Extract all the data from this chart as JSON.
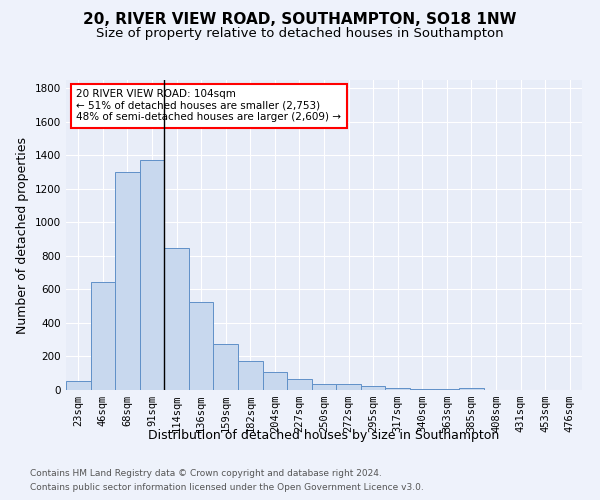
{
  "title": "20, RIVER VIEW ROAD, SOUTHAMPTON, SO18 1NW",
  "subtitle": "Size of property relative to detached houses in Southampton",
  "xlabel": "Distribution of detached houses by size in Southampton",
  "ylabel": "Number of detached properties",
  "footnote1": "Contains HM Land Registry data © Crown copyright and database right 2024.",
  "footnote2": "Contains public sector information licensed under the Open Government Licence v3.0.",
  "annotation_line1": "20 RIVER VIEW ROAD: 104sqm",
  "annotation_line2": "← 51% of detached houses are smaller (2,753)",
  "annotation_line3": "48% of semi-detached houses are larger (2,609) →",
  "bar_color": "#c8d8ee",
  "bar_edge_color": "#6090c8",
  "annotation_bar_index": 4,
  "vline_color": "#000000",
  "categories": [
    "23sqm",
    "46sqm",
    "68sqm",
    "91sqm",
    "114sqm",
    "136sqm",
    "159sqm",
    "182sqm",
    "204sqm",
    "227sqm",
    "250sqm",
    "272sqm",
    "295sqm",
    "317sqm",
    "340sqm",
    "363sqm",
    "385sqm",
    "408sqm",
    "431sqm",
    "453sqm",
    "476sqm"
  ],
  "values": [
    55,
    645,
    1300,
    1370,
    845,
    525,
    275,
    175,
    105,
    65,
    35,
    35,
    25,
    12,
    5,
    3,
    10,
    0,
    0,
    0,
    0
  ],
  "ylim": [
    0,
    1850
  ],
  "yticks": [
    0,
    200,
    400,
    600,
    800,
    1000,
    1200,
    1400,
    1600,
    1800
  ],
  "background_color": "#eef2fb",
  "plot_background": "#e8edf8",
  "grid_color": "#ffffff",
  "title_fontsize": 11,
  "subtitle_fontsize": 9.5,
  "axis_label_fontsize": 9,
  "tick_fontsize": 7.5,
  "footnote_fontsize": 6.5,
  "annotation_fontsize": 7.5
}
